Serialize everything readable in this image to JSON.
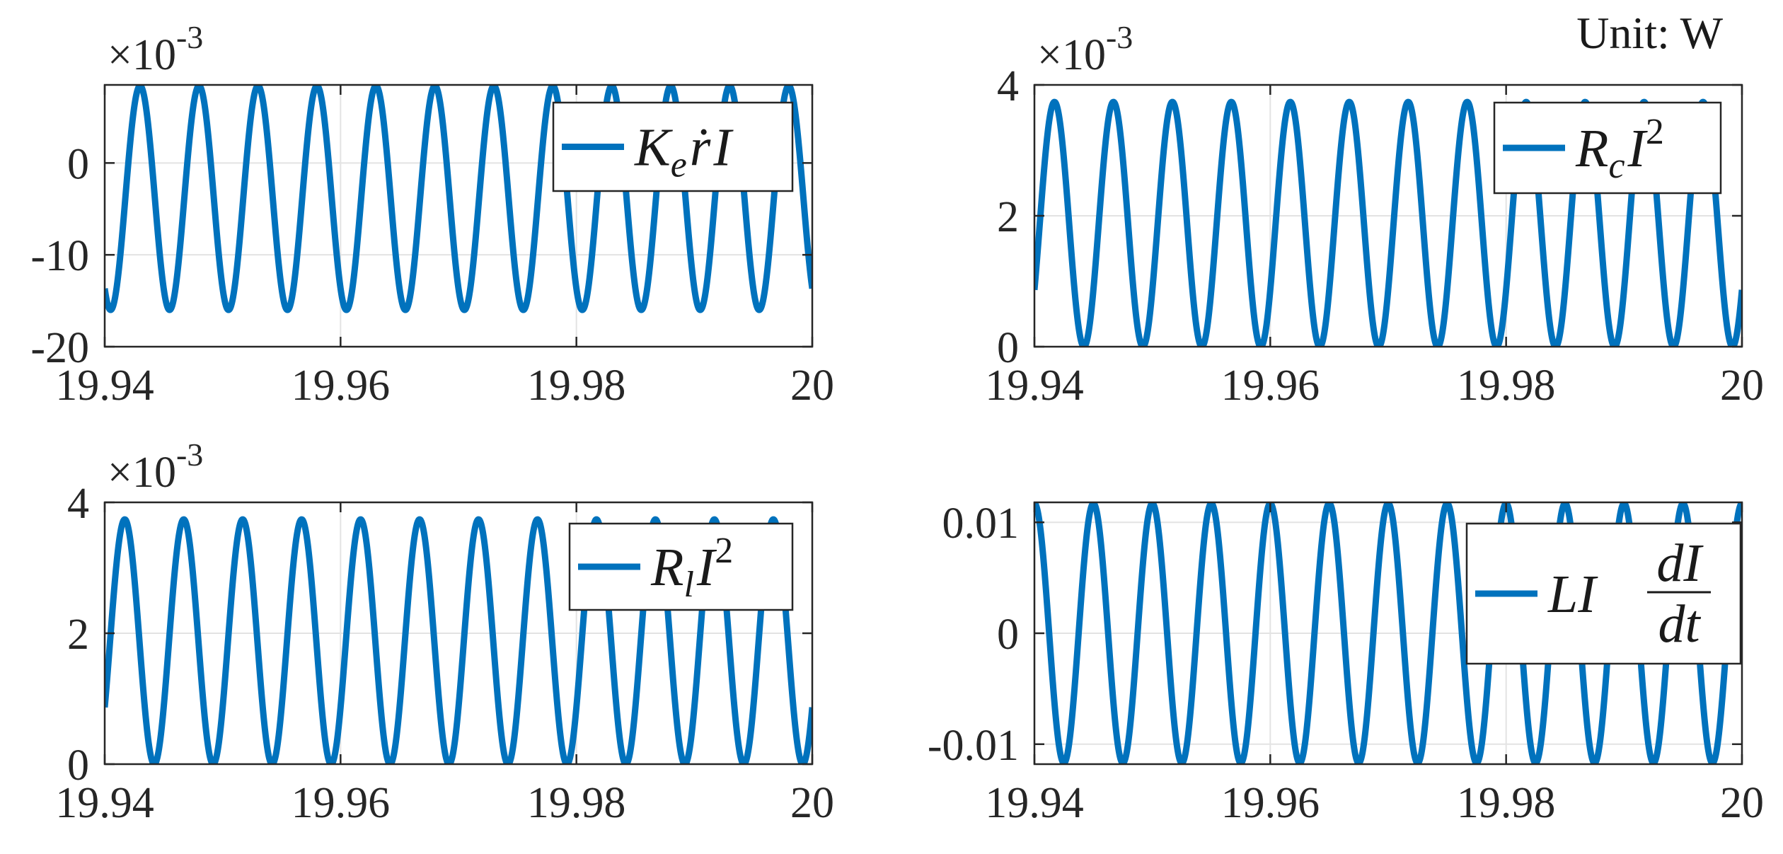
{
  "figure": {
    "unit_note": "Unit: W",
    "line_color": "#0072BD",
    "grid_color": "#e3e3e3"
  },
  "chart_data": [
    {
      "type": "line",
      "legend": "K_e ṙ I",
      "legend_parts": [
        "K",
        "e",
        "ṙ",
        "I"
      ],
      "exponent_label": "×10",
      "exponent_power": "-3",
      "xlim": [
        19.94,
        20
      ],
      "ylim": [
        -20,
        8.5
      ],
      "xticks": [
        19.94,
        19.96,
        19.98,
        20
      ],
      "xtick_labels": [
        "19.94",
        "19.96",
        "19.98",
        "20"
      ],
      "yticks": [
        -20,
        -10,
        0
      ],
      "ytick_labels": [
        "-20",
        "-10",
        "0"
      ],
      "series": [
        {
          "offset": -3.8,
          "amplitude": 12.2,
          "frequency_hz": 200,
          "peak_time": 19.943,
          "x_start": 19.94,
          "x_end": 20
        }
      ]
    },
    {
      "type": "line",
      "legend": "R_c I^2",
      "legend_parts": [
        "R",
        "c",
        "I",
        "2"
      ],
      "exponent_label": "×10",
      "exponent_power": "-3",
      "xlim": [
        19.94,
        20
      ],
      "ylim": [
        0,
        4
      ],
      "xticks": [
        19.94,
        19.96,
        19.98,
        20
      ],
      "xtick_labels": [
        "19.94",
        "19.96",
        "19.98",
        "20"
      ],
      "yticks": [
        0,
        2,
        4
      ],
      "ytick_labels": [
        "0",
        "2",
        "4"
      ],
      "series": [
        {
          "offset": 1.87,
          "amplitude": 1.87,
          "frequency_hz": 200,
          "peak_time": 19.9417,
          "x_start": 19.94,
          "x_end": 20
        }
      ]
    },
    {
      "type": "line",
      "legend": "R_l I^2",
      "legend_parts": [
        "R",
        "l",
        "I",
        "2"
      ],
      "exponent_label": "×10",
      "exponent_power": "-3",
      "xlim": [
        19.94,
        20
      ],
      "ylim": [
        0,
        4
      ],
      "xticks": [
        19.94,
        19.96,
        19.98,
        20
      ],
      "xtick_labels": [
        "19.94",
        "19.96",
        "19.98",
        "20"
      ],
      "yticks": [
        0,
        2,
        4
      ],
      "ytick_labels": [
        "0",
        "2",
        "4"
      ],
      "series": [
        {
          "offset": 1.87,
          "amplitude": 1.87,
          "frequency_hz": 200,
          "peak_time": 19.9417,
          "x_start": 19.94,
          "x_end": 20
        }
      ]
    },
    {
      "type": "line",
      "legend": "L I dI/dt",
      "legend_parts": [
        "LI",
        "dI",
        "dt"
      ],
      "exponent_label": "",
      "exponent_power": "",
      "xlim": [
        19.94,
        20
      ],
      "ylim": [
        -0.0118,
        0.0118
      ],
      "xticks": [
        19.94,
        19.96,
        19.98,
        20
      ],
      "xtick_labels": [
        "19.94",
        "19.96",
        "19.98",
        "20"
      ],
      "yticks": [
        -0.01,
        0,
        0.01
      ],
      "ytick_labels": [
        "-0.01",
        "0",
        "0.01"
      ],
      "series": [
        {
          "offset": 0,
          "amplitude": 0.0117,
          "frequency_hz": 200,
          "peak_time": 19.94,
          "x_start": 19.94,
          "x_end": 20
        }
      ]
    }
  ]
}
